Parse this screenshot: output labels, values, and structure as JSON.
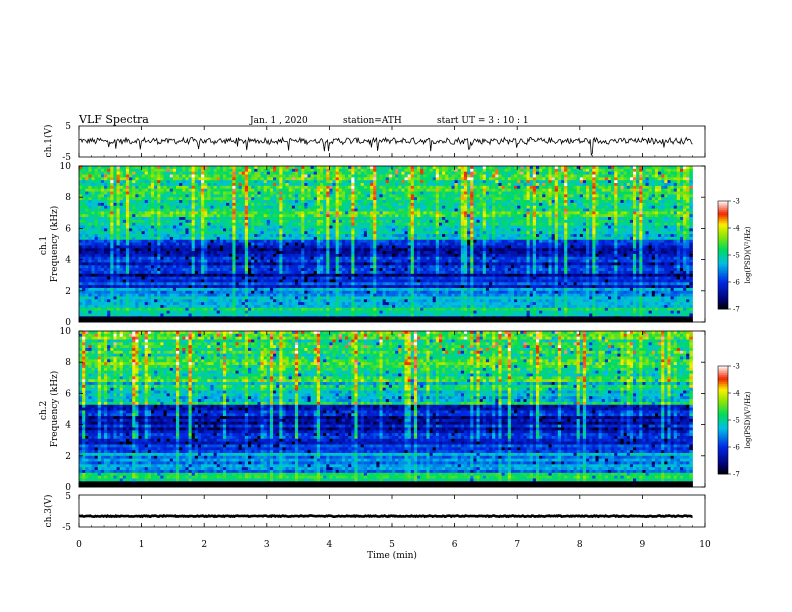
{
  "header": {
    "title": "VLF  Spectra",
    "date": "Jan.  1  , 2020",
    "station": "station=ATH",
    "start": "start  UT  =   3  : 10 : 1"
  },
  "chart_data": [
    {
      "type": "line",
      "name": "ch1-waveform",
      "ylabel": "ch.1(V)",
      "ylim": [
        -5,
        5
      ],
      "yticks": [
        "5",
        "-5"
      ],
      "xlim": [
        0,
        9.8
      ],
      "level": 0.2,
      "noise": 0.9
    },
    {
      "type": "heatmap",
      "name": "ch1-spectrogram",
      "ylabel": "ch.1\nFrequency  (kHz)",
      "ylim": [
        0,
        10
      ],
      "yticks": [
        "0",
        "2",
        "4",
        "6",
        "8",
        "10"
      ],
      "xlim": [
        0,
        9.8
      ],
      "colorbar": {
        "label": "log(PSD)(V²/Hz)",
        "range": [
          -7,
          -3
        ],
        "ticks": [
          "-3",
          "-4",
          "-5",
          "-6",
          "-7"
        ]
      }
    },
    {
      "type": "heatmap",
      "name": "ch2-spectrogram",
      "ylabel": "ch.2\nFrequency  (kHz)",
      "ylim": [
        0,
        10
      ],
      "yticks": [
        "0",
        "2",
        "4",
        "6",
        "8",
        "10"
      ],
      "xlim": [
        0,
        9.8
      ],
      "colorbar": {
        "label": "log(PSD)(V²/Hz)",
        "range": [
          -7,
          -3
        ],
        "ticks": [
          "-3",
          "-4",
          "-5",
          "-6",
          "-7"
        ]
      }
    },
    {
      "type": "line",
      "name": "ch3-waveform",
      "ylabel": "ch.3(V)",
      "ylim": [
        -5,
        5
      ],
      "yticks": [
        "5",
        "-5"
      ],
      "xlim": [
        0,
        9.8
      ],
      "level": -1.6,
      "noise": 0.15
    }
  ],
  "xaxis": {
    "label": "Time  (min)",
    "range": [
      0,
      10
    ],
    "ticks": [
      "0",
      "1",
      "2",
      "3",
      "4",
      "5",
      "6",
      "7",
      "8",
      "9",
      "10"
    ]
  }
}
